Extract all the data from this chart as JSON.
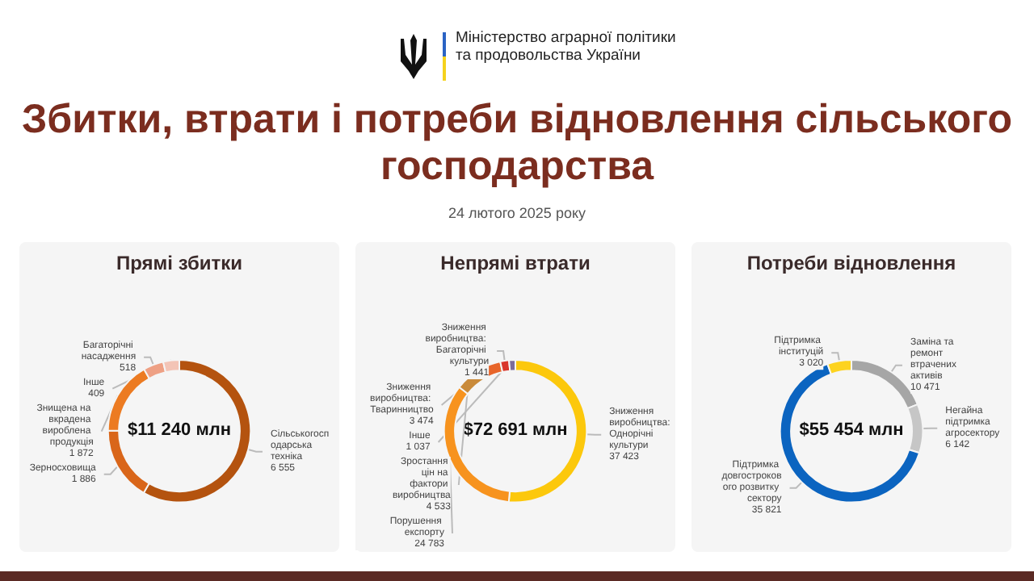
{
  "chart_data": [
    {
      "type": "other",
      "title": "Збитки, втрати і потреби відновлення сільського господарства",
      "subtitle": "24 лютого 2025 року",
      "annotations": [
        "Міністерство аграрної політики та продовольства України"
      ]
    },
    {
      "type": "donut",
      "title": "Прямі збитки",
      "annotations": [
        "$11 240 млн"
      ],
      "categories": [
        "Сільськогосподарська техніка",
        "Зерносховища",
        "Знищена на вкрадена вироблена продукція",
        "Багаторічні насадження",
        "Інше"
      ],
      "values": [
        6555,
        1886,
        1872,
        518,
        409
      ],
      "value_labels": [
        "6 555",
        "1 886",
        "1 872",
        "518",
        "409"
      ],
      "colors": [
        "#b4530f",
        "#d9661a",
        "#ec7b22",
        "#eea084",
        "#f3c4b6"
      ],
      "legend": false
    },
    {
      "type": "donut",
      "title": "Непрямі втрати",
      "annotations": [
        "$72 691 млн"
      ],
      "categories": [
        "Зниження виробництва: Однорічні культури",
        "Порушення експорту",
        "Зростання цін на фактори виробництва",
        "Зниження виробництва: Тваринництво",
        "Зниження виробництва: Багаторічні культури",
        "Інше"
      ],
      "values": [
        37423,
        24783,
        4533,
        3474,
        1441,
        1037
      ],
      "value_labels": [
        "37 423",
        "24 783",
        "4 533",
        "3 474",
        "1 441",
        "1 037"
      ],
      "colors": [
        "#fcc80c",
        "#f7931e",
        "#c98a3a",
        "#e8652a",
        "#d9352b",
        "#7c6c99"
      ],
      "legend": false
    },
    {
      "type": "donut",
      "title": "Потреби відновлення",
      "annotations": [
        "$55 454 млн"
      ],
      "categories": [
        "Заміна та ремонт втрачених активів",
        "Негайна підтримка агросектору",
        "Підтримка довгострокового розвитку сектору",
        "Підтримка інституцій"
      ],
      "values": [
        10471,
        6142,
        35821,
        3020
      ],
      "value_labels": [
        "10 471",
        "6 142",
        "35 821",
        "3 020"
      ],
      "colors": [
        "#a6a6a6",
        "#c6c6c6",
        "#0b64c0",
        "#fdd31f"
      ],
      "legend": false
    }
  ]
}
